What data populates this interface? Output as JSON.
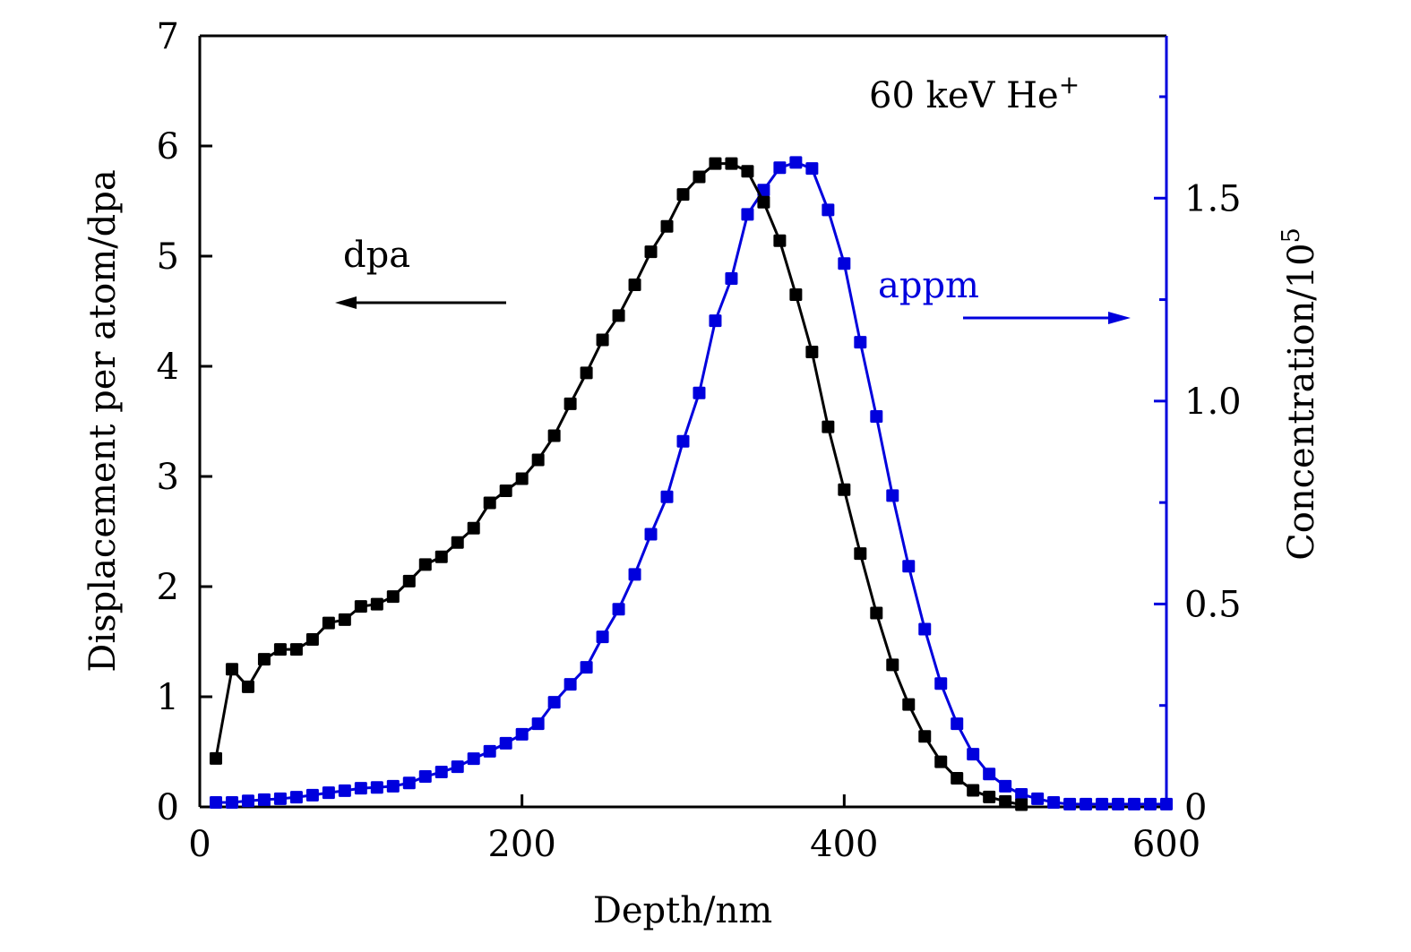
{
  "chart_data": {
    "type": "line",
    "title": "",
    "annotation": "60 keV He",
    "annotation_superscript": "+",
    "xlabel": "Depth/nm",
    "ylabel_left": "Displacement per atom/dpa",
    "ylabel_right": "Concentration/10",
    "ylabel_right_superscript": "5",
    "xlim": [
      0,
      600
    ],
    "ylim_left": [
      0,
      7
    ],
    "ylim_right": [
      0,
      1.9
    ],
    "x_ticks": [
      0,
      200,
      400,
      600
    ],
    "x_tick_labels": [
      "0",
      "200",
      "400",
      "600"
    ],
    "y_left_ticks": [
      0,
      1,
      2,
      3,
      4,
      5,
      6,
      7
    ],
    "y_left_tick_labels": [
      "0",
      "1",
      "2",
      "3",
      "4",
      "5",
      "6",
      "7"
    ],
    "y_right_ticks": [
      0,
      0.5,
      1.0,
      1.5
    ],
    "y_right_tick_labels": [
      "0",
      "0.5",
      "1.0",
      "1.5"
    ],
    "y_right_minor_ticks": [
      0.25,
      0.75,
      1.25,
      1.75
    ],
    "grid": false,
    "legend": "none",
    "arrow_labels": [
      {
        "text": "dpa",
        "direction": "left",
        "axis": "left",
        "color": "#000000"
      },
      {
        "text": "appm",
        "direction": "right",
        "axis": "right",
        "color": "#0000dd"
      }
    ],
    "series": [
      {
        "name": "dpa",
        "axis": "left",
        "color": "#000000",
        "marker": "square",
        "x": [
          10,
          20,
          30,
          40,
          50,
          60,
          70,
          80,
          90,
          100,
          110,
          120,
          130,
          140,
          150,
          160,
          170,
          180,
          190,
          200,
          210,
          220,
          230,
          240,
          250,
          260,
          270,
          280,
          290,
          300,
          310,
          320,
          330,
          340,
          350,
          360,
          370,
          380,
          390,
          400,
          410,
          420,
          430,
          440,
          450,
          460,
          470,
          480,
          490,
          500,
          510
        ],
        "values": [
          0.44,
          1.25,
          1.09,
          1.34,
          1.43,
          1.43,
          1.52,
          1.67,
          1.7,
          1.82,
          1.84,
          1.91,
          2.05,
          2.2,
          2.27,
          2.4,
          2.53,
          2.76,
          2.87,
          2.98,
          3.15,
          3.37,
          3.66,
          3.94,
          4.24,
          4.46,
          4.74,
          5.04,
          5.27,
          5.56,
          5.72,
          5.84,
          5.84,
          5.77,
          5.49,
          5.14,
          4.65,
          4.13,
          3.45,
          2.88,
          2.3,
          1.76,
          1.29,
          0.93,
          0.64,
          0.41,
          0.26,
          0.15,
          0.09,
          0.05,
          0.02
        ]
      },
      {
        "name": "appm",
        "axis": "right",
        "color": "#0000dd",
        "marker": "square",
        "x": [
          10,
          20,
          30,
          40,
          50,
          60,
          70,
          80,
          90,
          100,
          110,
          120,
          130,
          140,
          150,
          160,
          170,
          180,
          190,
          200,
          210,
          220,
          230,
          240,
          250,
          260,
          270,
          280,
          290,
          300,
          310,
          320,
          330,
          340,
          350,
          360,
          370,
          380,
          390,
          400,
          410,
          420,
          430,
          440,
          450,
          460,
          470,
          480,
          490,
          500,
          510,
          520,
          530,
          540,
          550,
          560,
          570,
          580,
          590,
          600
        ],
        "values": [
          0.011,
          0.011,
          0.015,
          0.018,
          0.02,
          0.024,
          0.029,
          0.035,
          0.04,
          0.046,
          0.048,
          0.051,
          0.059,
          0.075,
          0.086,
          0.099,
          0.119,
          0.137,
          0.157,
          0.179,
          0.205,
          0.258,
          0.302,
          0.344,
          0.419,
          0.487,
          0.573,
          0.672,
          0.764,
          0.901,
          1.02,
          1.198,
          1.302,
          1.46,
          1.52,
          1.575,
          1.588,
          1.573,
          1.471,
          1.339,
          1.145,
          0.962,
          0.767,
          0.593,
          0.438,
          0.304,
          0.205,
          0.13,
          0.081,
          0.051,
          0.031,
          0.02,
          0.011,
          0.007,
          0.007,
          0.007,
          0.007,
          0.007,
          0.007,
          0.007
        ]
      }
    ]
  }
}
